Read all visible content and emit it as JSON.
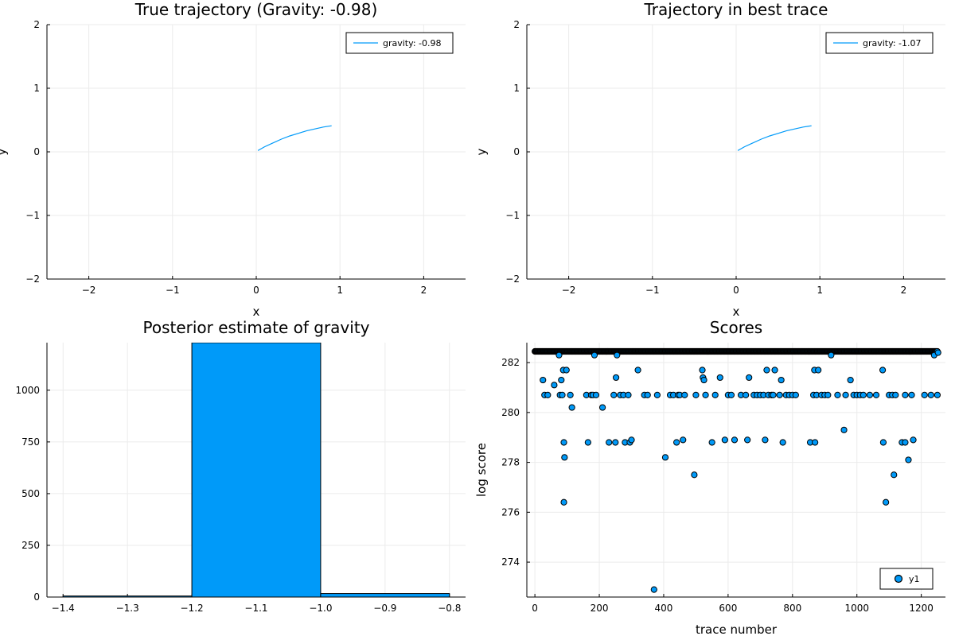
{
  "chart_data": [
    {
      "type": "line",
      "title": "True trajectory (Gravity: -0.98)",
      "xlabel": "x",
      "ylabel": "y",
      "xlim": [
        -2.5,
        2.5
      ],
      "ylim": [
        -2,
        2
      ],
      "xticks": [
        -2,
        -1,
        0,
        1,
        2
      ],
      "yticks": [
        -2,
        -1,
        0,
        1,
        2
      ],
      "xtick_labels": [
        "−2",
        "−1",
        "0",
        "1",
        "2"
      ],
      "ytick_labels": [
        "−2",
        "−1",
        "0",
        "1",
        "2"
      ],
      "grid": true,
      "legend_position": "top-right",
      "color": "#009af9",
      "series": [
        {
          "name": "gravity: -0.98",
          "x": [
            0.02,
            0.1,
            0.2,
            0.3,
            0.4,
            0.5,
            0.6,
            0.7,
            0.8,
            0.9
          ],
          "y": [
            0.02,
            0.08,
            0.14,
            0.2,
            0.25,
            0.29,
            0.33,
            0.36,
            0.39,
            0.41
          ]
        }
      ]
    },
    {
      "type": "line",
      "title": "Trajectory in best trace",
      "xlabel": "x",
      "ylabel": "y",
      "xlim": [
        -2.5,
        2.5
      ],
      "ylim": [
        -2,
        2
      ],
      "xticks": [
        -2,
        -1,
        0,
        1,
        2
      ],
      "yticks": [
        -2,
        -1,
        0,
        1,
        2
      ],
      "xtick_labels": [
        "−2",
        "−1",
        "0",
        "1",
        "2"
      ],
      "ytick_labels": [
        "−2",
        "−1",
        "0",
        "1",
        "2"
      ],
      "grid": true,
      "legend_position": "top-right",
      "color": "#009af9",
      "series": [
        {
          "name": "gravity: -1.07",
          "x": [
            0.02,
            0.1,
            0.2,
            0.3,
            0.4,
            0.5,
            0.6,
            0.7,
            0.8,
            0.9
          ],
          "y": [
            0.02,
            0.08,
            0.14,
            0.2,
            0.25,
            0.29,
            0.33,
            0.36,
            0.39,
            0.41
          ]
        }
      ]
    },
    {
      "type": "bar",
      "title": "Posterior estimate of gravity",
      "xlabel": "",
      "ylabel": "",
      "xlim": [
        -1.425,
        -0.775
      ],
      "ylim": [
        0,
        1230
      ],
      "xticks": [
        -1.4,
        -1.3,
        -1.2,
        -1.1,
        -1.0,
        -0.9,
        -0.8
      ],
      "xtick_labels": [
        "−1.4",
        "−1.3",
        "−1.2",
        "−1.1",
        "−1.0",
        "−0.9",
        "−0.8"
      ],
      "yticks": [
        0,
        250,
        500,
        750,
        1000
      ],
      "ytick_labels": [
        "0",
        "250",
        "500",
        "750",
        "1000"
      ],
      "grid": true,
      "color": "#009af9",
      "bins": [
        {
          "x0": -1.4,
          "x1": -1.2,
          "value": 5
        },
        {
          "x0": -1.2,
          "x1": -1.0,
          "value": 1230
        },
        {
          "x0": -1.0,
          "x1": -0.8,
          "value": 17
        }
      ]
    },
    {
      "type": "scatter",
      "title": "Scores",
      "xlabel": "trace number",
      "ylabel": "log score",
      "xlim": [
        -25,
        1275
      ],
      "ylim": [
        272.6,
        282.8
      ],
      "xticks": [
        0,
        200,
        400,
        600,
        800,
        1000,
        1200
      ],
      "xtick_labels": [
        "0",
        "200",
        "400",
        "600",
        "800",
        "1000",
        "1200"
      ],
      "yticks": [
        274,
        276,
        278,
        280,
        282
      ],
      "ytick_labels": [
        "274",
        "276",
        "278",
        "280",
        "282"
      ],
      "grid": true,
      "legend_position": "bottom-right",
      "color": "#009af9",
      "series": [
        {
          "name": "y1",
          "top_value": 282.45,
          "top_range": [
            0,
            1250
          ],
          "points": [
            [
              25,
              281.3
            ],
            [
              30,
              280.7
            ],
            [
              40,
              280.7
            ],
            [
              60,
              281.1
            ],
            [
              75,
              282.3
            ],
            [
              78,
              280.7
            ],
            [
              82,
              281.3
            ],
            [
              85,
              280.7
            ],
            [
              88,
              281.7
            ],
            [
              90,
              278.8
            ],
            [
              92,
              278.2
            ],
            [
              90,
              276.4
            ],
            [
              98,
              281.7
            ],
            [
              110,
              280.7
            ],
            [
              115,
              280.2
            ],
            [
              160,
              280.7
            ],
            [
              165,
              278.8
            ],
            [
              175,
              280.7
            ],
            [
              180,
              280.7
            ],
            [
              185,
              282.3
            ],
            [
              190,
              280.7
            ],
            [
              210,
              280.2
            ],
            [
              230,
              278.8
            ],
            [
              245,
              280.7
            ],
            [
              250,
              278.8
            ],
            [
              252,
              281.4
            ],
            [
              255,
              282.3
            ],
            [
              265,
              280.7
            ],
            [
              275,
              280.7
            ],
            [
              280,
              278.8
            ],
            [
              290,
              280.7
            ],
            [
              295,
              278.8
            ],
            [
              300,
              278.9
            ],
            [
              320,
              281.7
            ],
            [
              340,
              280.7
            ],
            [
              350,
              280.7
            ],
            [
              370,
              272.9
            ],
            [
              380,
              280.7
            ],
            [
              405,
              278.2
            ],
            [
              420,
              280.7
            ],
            [
              430,
              280.7
            ],
            [
              440,
              278.8
            ],
            [
              445,
              280.7
            ],
            [
              450,
              280.7
            ],
            [
              460,
              278.9
            ],
            [
              465,
              280.7
            ],
            [
              495,
              277.5
            ],
            [
              500,
              280.7
            ],
            [
              520,
              281.7
            ],
            [
              522,
              281.4
            ],
            [
              525,
              281.3
            ],
            [
              530,
              280.7
            ],
            [
              550,
              278.8
            ],
            [
              560,
              280.7
            ],
            [
              575,
              281.4
            ],
            [
              590,
              278.9
            ],
            [
              600,
              280.7
            ],
            [
              610,
              280.7
            ],
            [
              620,
              278.9
            ],
            [
              640,
              280.7
            ],
            [
              655,
              280.7
            ],
            [
              660,
              278.9
            ],
            [
              665,
              281.4
            ],
            [
              680,
              280.7
            ],
            [
              690,
              280.7
            ],
            [
              700,
              280.7
            ],
            [
              710,
              280.7
            ],
            [
              715,
              278.9
            ],
            [
              720,
              281.7
            ],
            [
              725,
              280.7
            ],
            [
              735,
              280.7
            ],
            [
              740,
              280.7
            ],
            [
              745,
              281.7
            ],
            [
              760,
              280.7
            ],
            [
              765,
              281.3
            ],
            [
              770,
              278.8
            ],
            [
              780,
              280.7
            ],
            [
              790,
              280.7
            ],
            [
              800,
              280.7
            ],
            [
              810,
              280.7
            ],
            [
              855,
              278.8
            ],
            [
              865,
              280.7
            ],
            [
              868,
              281.7
            ],
            [
              870,
              278.8
            ],
            [
              875,
              280.7
            ],
            [
              880,
              281.7
            ],
            [
              890,
              280.7
            ],
            [
              900,
              280.7
            ],
            [
              910,
              280.7
            ],
            [
              920,
              282.3
            ],
            [
              940,
              280.7
            ],
            [
              960,
              279.3
            ],
            [
              965,
              280.7
            ],
            [
              980,
              281.3
            ],
            [
              990,
              280.7
            ],
            [
              1000,
              280.7
            ],
            [
              1010,
              280.7
            ],
            [
              1020,
              280.7
            ],
            [
              1040,
              280.7
            ],
            [
              1060,
              280.7
            ],
            [
              1080,
              281.7
            ],
            [
              1082,
              278.8
            ],
            [
              1090,
              276.4
            ],
            [
              1100,
              280.7
            ],
            [
              1110,
              280.7
            ],
            [
              1115,
              277.5
            ],
            [
              1120,
              280.7
            ],
            [
              1140,
              278.8
            ],
            [
              1150,
              278.8
            ],
            [
              1150,
              280.7
            ],
            [
              1160,
              278.1
            ],
            [
              1170,
              280.7
            ],
            [
              1175,
              278.9
            ],
            [
              1210,
              280.7
            ],
            [
              1230,
              280.7
            ],
            [
              1240,
              282.3
            ],
            [
              1250,
              280.7
            ],
            [
              1252,
              282.4
            ]
          ]
        }
      ]
    }
  ]
}
